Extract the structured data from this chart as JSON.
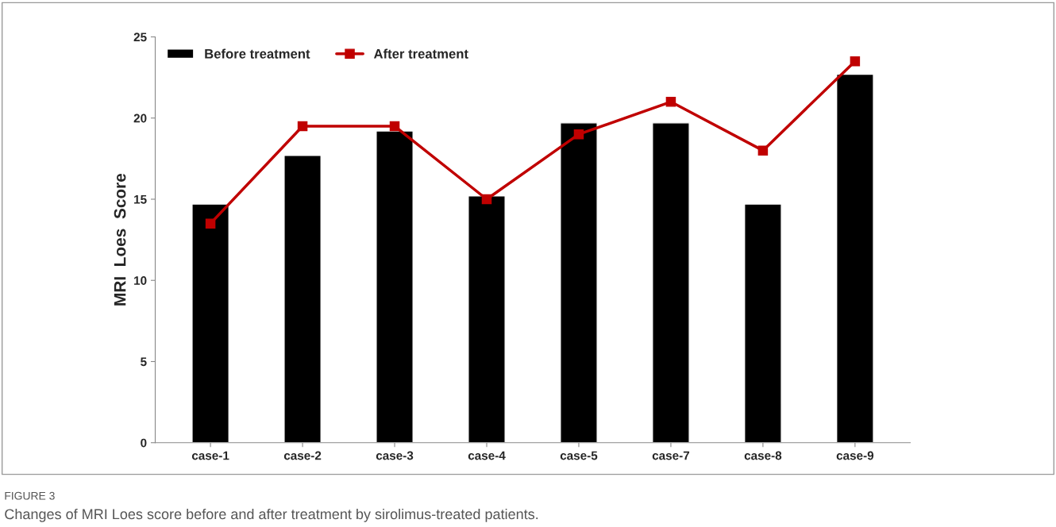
{
  "chart_data": {
    "type": "bar",
    "ylabel": "MRI  Loes  Score",
    "categories": [
      "case-1",
      "case-2",
      "case-3",
      "case-4",
      "case-5",
      "case-7",
      "case-8",
      "case-9"
    ],
    "series": [
      {
        "name": "Before treatment",
        "color": "#000000",
        "values": [
          14.7,
          17.7,
          19.2,
          15.2,
          19.7,
          19.7,
          14.7,
          22.7
        ]
      },
      {
        "name": "After treatment",
        "type": "line",
        "color": "#c00000",
        "marker": "square",
        "values": [
          13.5,
          19.5,
          19.5,
          15,
          19,
          21,
          18,
          23.5
        ]
      }
    ],
    "ylim": [
      0,
      25
    ],
    "yticks": [
      0,
      5,
      10,
      15,
      20,
      25
    ],
    "grid": false,
    "legend": "top left",
    "annotations": [
      "FIGURE 3",
      "Changes of MRI Loes score before and after treatment by sirolimus-treated patients."
    ]
  }
}
